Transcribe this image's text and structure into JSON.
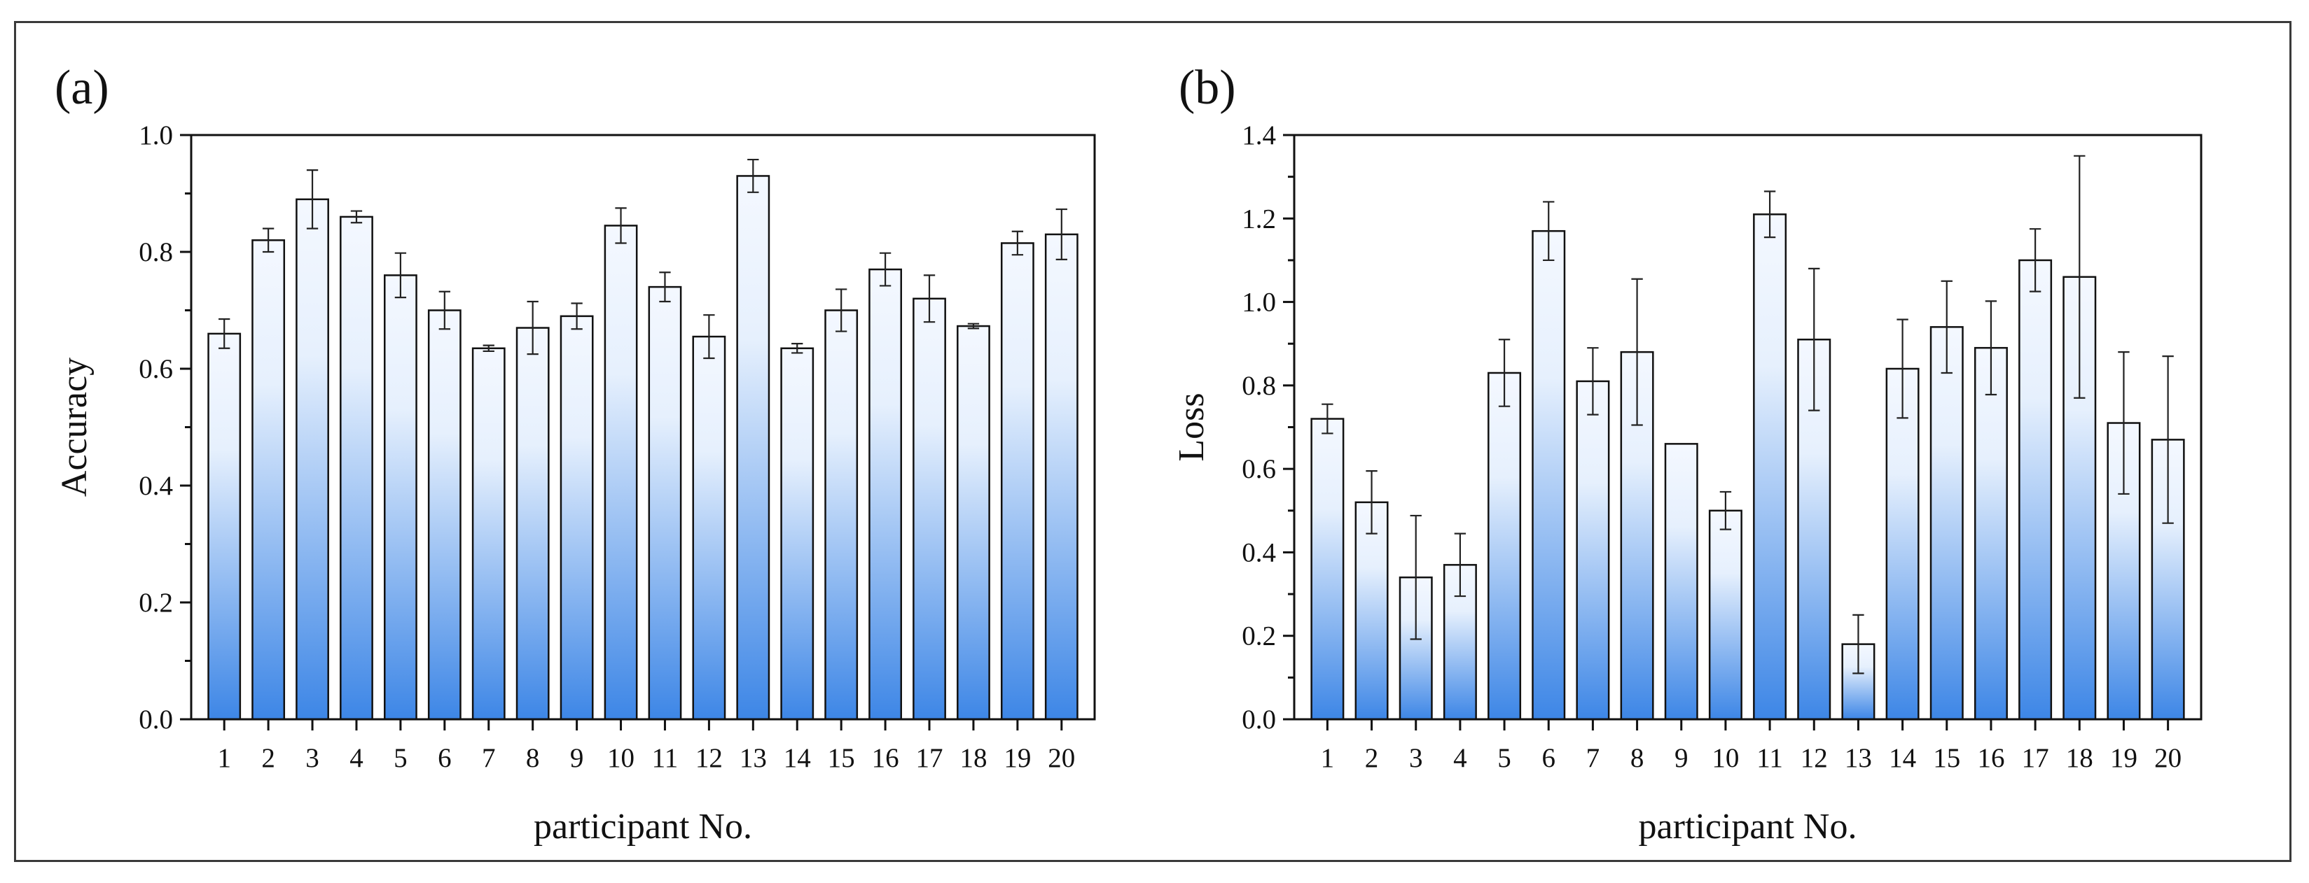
{
  "chart_data": [
    {
      "type": "bar",
      "panel_label": "(a)",
      "xlabel": "participant No.",
      "ylabel": "Accuracy",
      "ylim": [
        0,
        1.0
      ],
      "yticks": [
        "0.0",
        "0.2",
        "0.4",
        "0.6",
        "0.8",
        "1.0"
      ],
      "ytick_values": [
        0,
        0.2,
        0.4,
        0.6,
        0.8,
        1.0
      ],
      "categories": [
        "1",
        "2",
        "3",
        "4",
        "5",
        "6",
        "7",
        "8",
        "9",
        "10",
        "11",
        "12",
        "13",
        "14",
        "15",
        "16",
        "17",
        "18",
        "19",
        "20"
      ],
      "values": [
        0.66,
        0.82,
        0.89,
        0.86,
        0.76,
        0.7,
        0.635,
        0.67,
        0.69,
        0.845,
        0.74,
        0.655,
        0.93,
        0.635,
        0.7,
        0.77,
        0.72,
        0.673,
        0.815,
        0.83
      ],
      "errors": [
        0.025,
        0.02,
        0.05,
        0.01,
        0.038,
        0.032,
        0.005,
        0.045,
        0.022,
        0.03,
        0.025,
        0.037,
        0.028,
        0.008,
        0.036,
        0.028,
        0.04,
        0.004,
        0.02,
        0.043
      ],
      "colors": {
        "top": "#f4f8ff",
        "bottom": "#3d86e6"
      }
    },
    {
      "type": "bar",
      "panel_label": "(b)",
      "xlabel": "participant No.",
      "ylabel": "Loss",
      "ylim": [
        0,
        1.4
      ],
      "yticks": [
        "0.0",
        "0.2",
        "0.4",
        "0.6",
        "0.8",
        "1.0",
        "1.2",
        "1.4"
      ],
      "ytick_values": [
        0,
        0.2,
        0.4,
        0.6,
        0.8,
        1.0,
        1.2,
        1.4
      ],
      "categories": [
        "1",
        "2",
        "3",
        "4",
        "5",
        "6",
        "7",
        "8",
        "9",
        "10",
        "11",
        "12",
        "13",
        "14",
        "15",
        "16",
        "17",
        "18",
        "19",
        "20"
      ],
      "values": [
        0.72,
        0.52,
        0.34,
        0.37,
        0.83,
        1.17,
        0.81,
        0.88,
        0.66,
        0.5,
        1.21,
        0.91,
        0.18,
        0.84,
        0.94,
        0.89,
        1.1,
        1.06,
        0.71,
        0.67
      ],
      "errors": [
        0.035,
        0.075,
        0.148,
        0.075,
        0.08,
        0.07,
        0.08,
        0.175,
        0.0,
        0.045,
        0.055,
        0.17,
        0.07,
        0.118,
        0.11,
        0.112,
        0.075,
        0.29,
        0.17,
        0.2
      ],
      "colors": {
        "top": "#f4f8ff",
        "bottom": "#3d86e6"
      }
    }
  ]
}
